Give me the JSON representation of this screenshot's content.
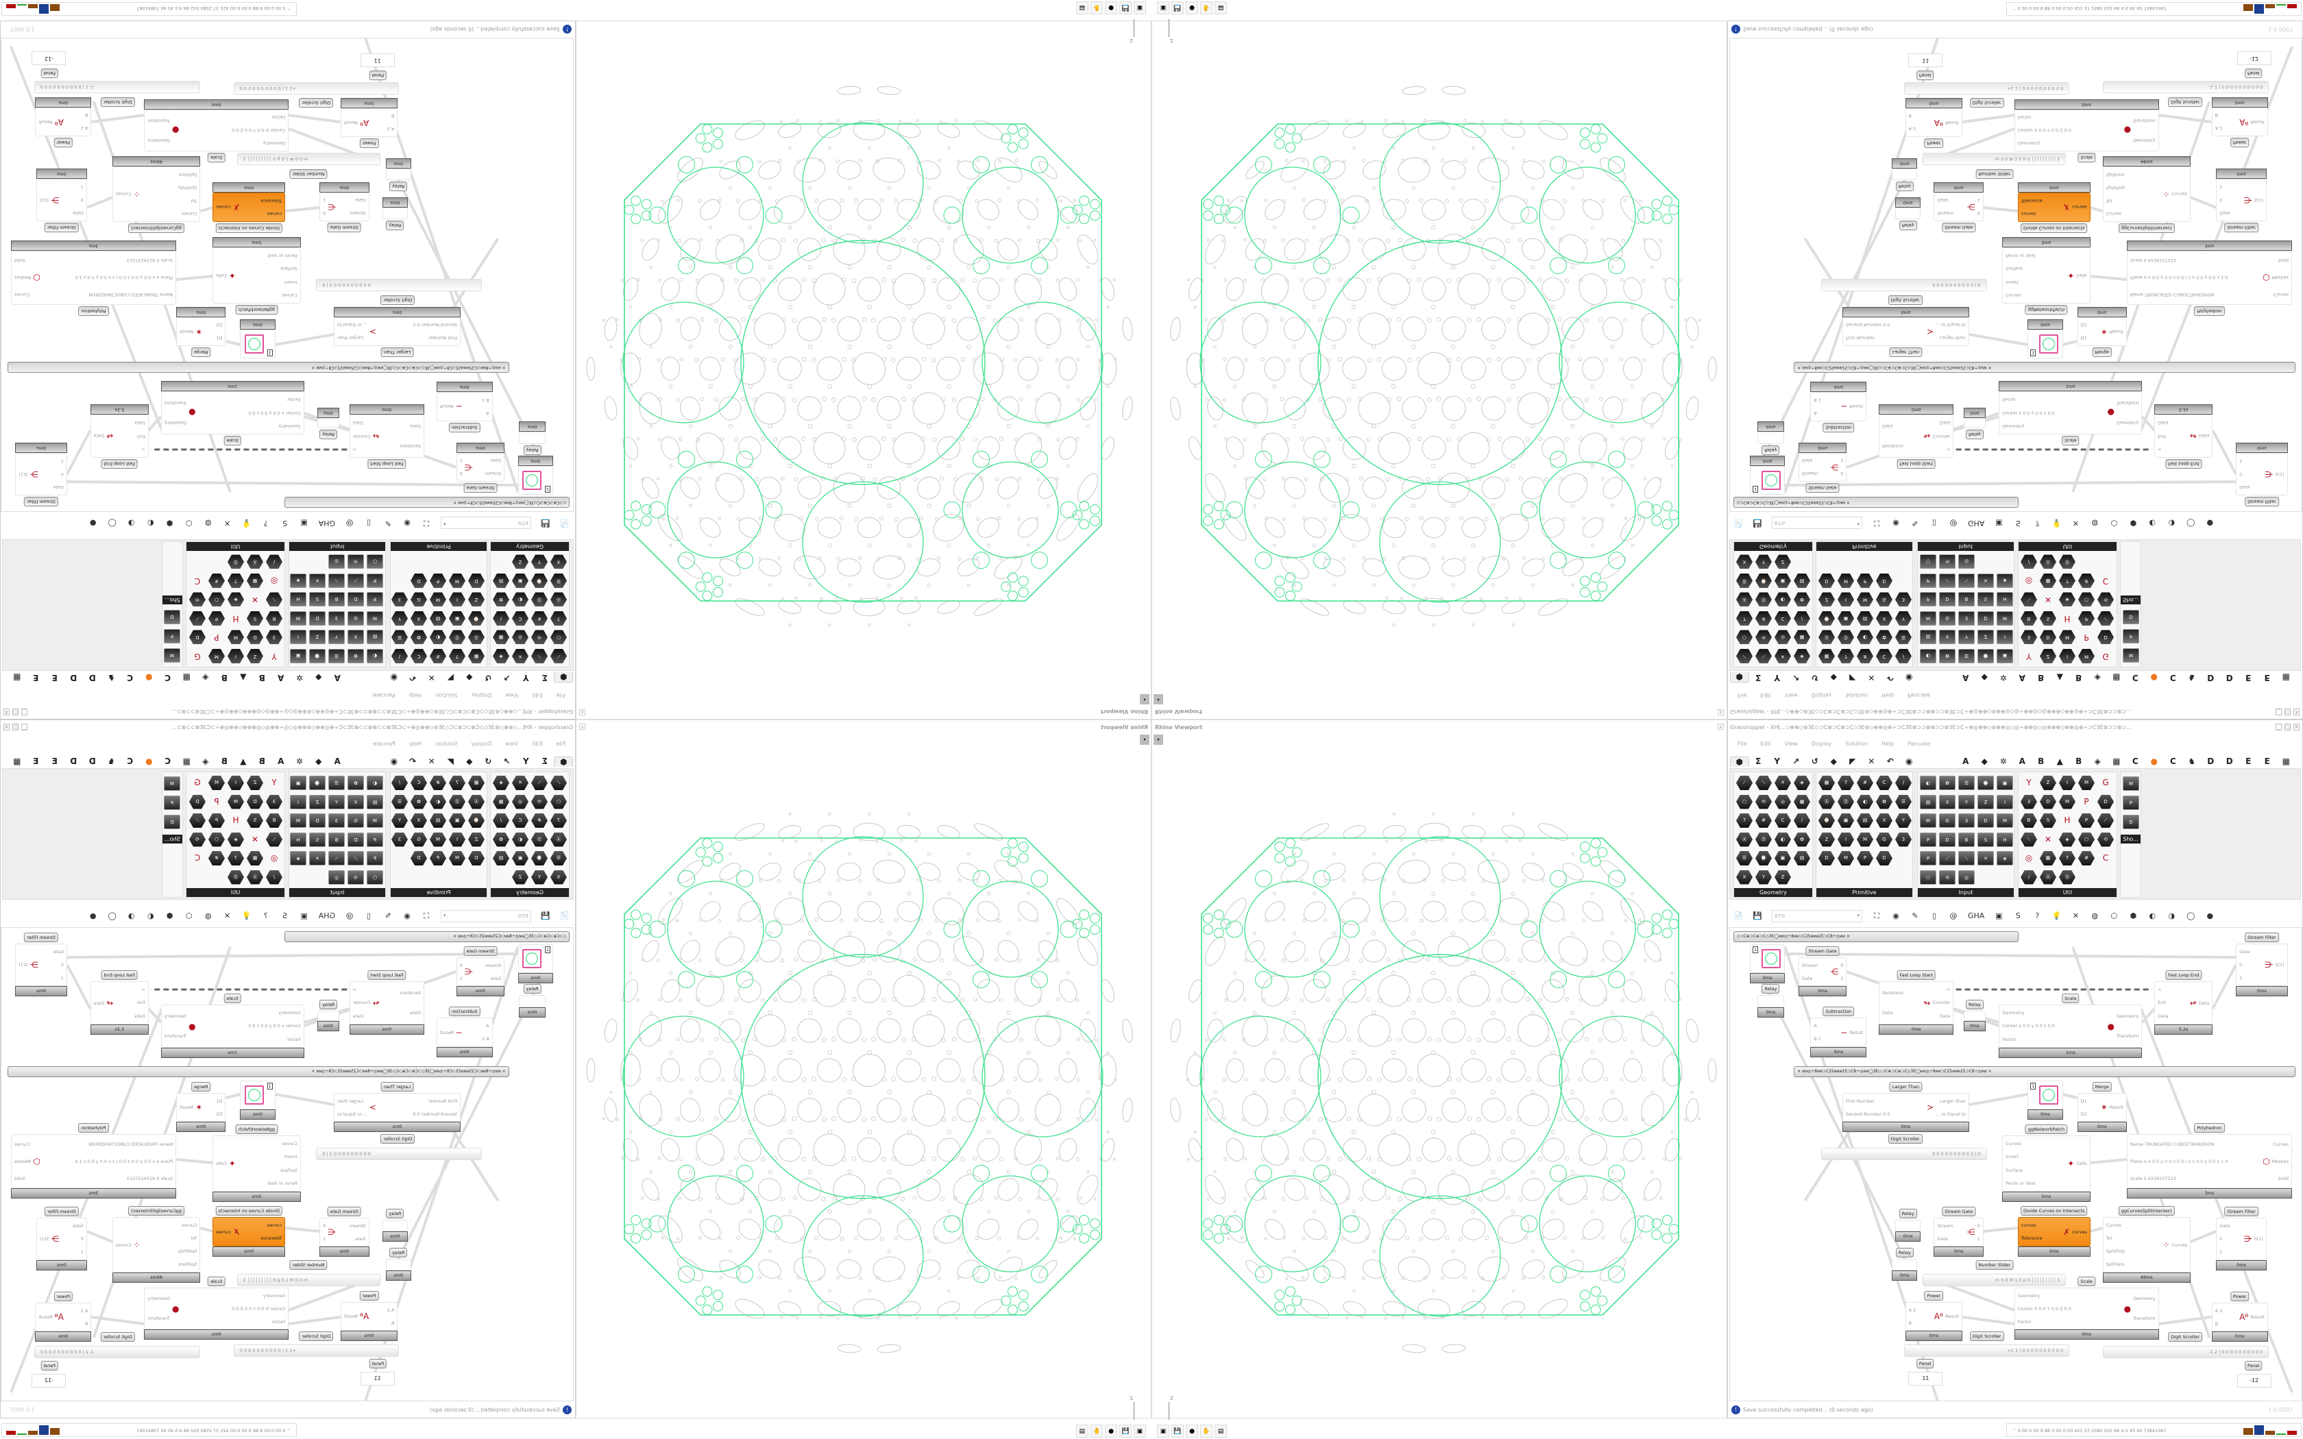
{
  "viewport": {
    "title": "Rhino Viewport",
    "close": "x",
    "menu_icon": "▾",
    "axis_z": "Z",
    "axis_x": "X",
    "colors": {
      "curve_green": "#3ee08e",
      "curve_gray": "#c8c8c8"
    }
  },
  "taskbar": {
    "icons": [
      "terminal-icon",
      "floppy-64-icon",
      "firefox-icon",
      "inkscape-icon",
      "calculator-icon"
    ],
    "glyphs": [
      "▣",
      "💾",
      "●",
      "✋",
      "▤"
    ]
  },
  "grasshopper": {
    "title": "Grasshopper - XH[...◇⊕⊕◇⊛3E◇⊃C⊗⊃C⊗⊃C◇3E⊛◇⊕⊕◎⊕÷⊃C3E⊗⊃⊃⊗⊗⊃⊃⊗3E⊃C÷⊕◎⊕⊕◇⊛⊕⊕◎◇◎÷⊕⊕◎◇◎⊕⊕⊕◇⊕⊕◎⊕÷⊃C3E⊗⊃⊃⊗⊃...",
    "window_buttons": [
      "_",
      "□",
      "X"
    ],
    "menu": [
      "File",
      "Edit",
      "View",
      "Display",
      "Solution",
      "Help",
      "Pancake"
    ],
    "tabs": [
      "⬢",
      "Σ",
      "Y",
      "↗",
      "↺",
      "◆",
      "◤",
      "✕",
      "↶",
      "◉",
      "",
      "",
      "A",
      "◆",
      "✲",
      "A",
      "B",
      "▲",
      "B",
      "◈",
      "▦",
      "C",
      "●",
      "C",
      "♞",
      "D",
      "D",
      "E",
      "E",
      "▦"
    ],
    "ribbon": [
      {
        "label": "Geometry",
        "count": 23,
        "shape": "hex"
      },
      {
        "label": "Primitive",
        "count": 24,
        "shape": "hex"
      },
      {
        "label": "Input",
        "count": 28,
        "shape": "sq"
      },
      {
        "label": "Util",
        "count": 28,
        "shape": "mix"
      },
      {
        "label": "Sho...",
        "count": 3,
        "shape": "sq"
      }
    ],
    "toolbar": {
      "zoom": "87%",
      "icons": [
        "📄",
        "💾",
        "⛶",
        "◉",
        "✎",
        "▯",
        "@",
        "GHA",
        "▣",
        "S",
        "?",
        "💡",
        "✕",
        "◍",
        "⬡",
        "⬢",
        "◐",
        "◑",
        "◯",
        "●"
      ]
    },
    "canvas": {
      "groups": [
        "◇⊃C⊕⊃C⊕⊃C◇3E◯ᴎᴎ◎÷8ᴎᴎ⊃C25ᴎᴎᴎ25⊃C8÷◎ᴎᴎ  ×",
        "×   ᴎᴎ◎÷8ᴎᴎ⊃C25ᴎᴎᴎ25⊃C8÷◎ᴎᴎ◯3E◇⊃C⊕⊃C⊕⊃C◇3E◯ᴎᴎ◎÷8ᴎᴎ⊃C25ᴎᴎᴎ25⊃C8÷◎ᴎᴎ   ×"
      ],
      "components": [
        {
          "title": "",
          "kind": "param",
          "value": "1",
          "time": "0ms"
        },
        {
          "title": "Relay",
          "kind": "relay",
          "time": "0ms"
        },
        {
          "title": "Stream Gate",
          "inputs": [
            "Stream",
            "Gate"
          ],
          "outputs": [
            "0",
            "1"
          ],
          "icon": "⋲",
          "time": "0ms"
        },
        {
          "title": "Subtraction",
          "inputs": [
            "A",
            "B 1"
          ],
          "outputs": [
            "Result"
          ],
          "icon": "−",
          "time": "0ms"
        },
        {
          "title": "Fast Loop Start",
          "inputs": [
            "Iterations",
            "Data"
          ],
          "outputs": [
            ">",
            "Counter",
            "Data"
          ],
          "icon": "↬",
          "time": "0ms"
        },
        {
          "title": "Relay",
          "kind": "relay",
          "time": "0ms"
        },
        {
          "title": "Scale",
          "inputs": [
            "Geometry",
            "Center x 0.0 y 0.0 z 0.0",
            "Factor"
          ],
          "outputs": [
            "Geometry",
            "Transform"
          ],
          "icon": "●",
          "time": "1ms"
        },
        {
          "title": "Fast Loop End",
          "inputs": [
            "<",
            "Exit",
            "Data"
          ],
          "outputs": [
            "Data"
          ],
          "icon": "↫",
          "time": "5.2s"
        },
        {
          "title": "Stream Filter",
          "inputs": [
            "Gate",
            "0",
            "1"
          ],
          "outputs": [
            "S(1)"
          ],
          "icon": "⋺",
          "time": "0ms"
        },
        {
          "title": "Larger Than",
          "inputs": [
            "First Number",
            "Second Number 0.0"
          ],
          "outputs": [
            "Larger than",
            "... or Equal to"
          ],
          "icon": ">",
          "time": "0ms"
        },
        {
          "title": "",
          "kind": "param",
          "value": "1",
          "time": "0ms"
        },
        {
          "title": "Merge",
          "inputs": [
            "D1",
            "D2"
          ],
          "outputs": [
            "Result"
          ],
          "icon": "✶",
          "time": "0ms"
        },
        {
          "title": "ggNetworkPatch",
          "inputs": [
            "Curves",
            "Invert",
            "Surface",
            "Perim or Void"
          ],
          "outputs": [
            "Cells"
          ],
          "icon": "✦",
          "time": "5ms"
        },
        {
          "title": "Polyhedron",
          "inputs": [
            "Name TRUNCATED CUBOCTAHEDRON",
            "Plane  o x 0.0 y 0.0 z 0.0 / z x 0.0 y 0.0 z 1.0",
            "Scale 0.4234237223"
          ],
          "outputs": [
            "Curves",
            "Meshes",
            "Solid"
          ],
          "icon": "⬡",
          "time": "3ms"
        },
        {
          "title": "Relay",
          "kind": "relay",
          "time": "0ms"
        },
        {
          "title": "Relay",
          "kind": "relay",
          "time": "0ms"
        },
        {
          "title": "Stream Gate",
          "inputs": [
            "Stream",
            "Gate"
          ],
          "outputs": [
            "0",
            "1"
          ],
          "icon": "⋲",
          "time": "0ms"
        },
        {
          "title": "Divide Curves on Intersects",
          "inputs": [
            "curves",
            "Tolerance"
          ],
          "outputs": [
            "curves"
          ],
          "icon": "✗",
          "time": "0ms",
          "selected": true
        },
        {
          "title": "ggCurvesSplitIntersect",
          "inputs": [
            "Curves",
            "Tol",
            "SplitPoly",
            "Splitters"
          ],
          "outputs": [
            "Curves"
          ],
          "icon": "⁘",
          "time": "46ms"
        },
        {
          "title": "Stream Filter",
          "inputs": [
            "Gate",
            "0",
            "1"
          ],
          "outputs": [
            "S(1)"
          ],
          "icon": "⋺",
          "time": "0ms"
        },
        {
          "title": "Scale",
          "inputs": [
            "Geometry",
            "Center X 0.0 Y 0.0 Z 0.0",
            "Factor"
          ],
          "outputs": [
            "Geometry",
            "Transform"
          ],
          "icon": "●",
          "time": "0ms"
        },
        {
          "title": "Power",
          "inputs": [
            "A 2",
            "B"
          ],
          "outputs": [
            "Result"
          ],
          "icon": "Aᴮ",
          "time": "0ms"
        },
        {
          "title": "Power",
          "inputs": [
            "A 2",
            "B"
          ],
          "outputs": [
            "Result"
          ],
          "icon": "Aᴮ",
          "time": "0ms"
        }
      ],
      "sliders": [
        {
          "title": "Digit Scroller",
          "value": "0 0 0 0 0 0 0 0 0 3 | 0"
        },
        {
          "title": "Number Slider",
          "value": "m 0.0  M 1.0  p 0   ┆┆┆┆┆┆┆┆┆ 1"
        },
        {
          "title": "Digit Scroller",
          "value": "+1 1 | 0 0 0 0 0 0 0 0 0 0"
        },
        {
          "title": "Digit Scroller",
          "value": "-1 2 | 0 0 0 0 0 0 0 0 0 0"
        }
      ],
      "panels": [
        {
          "title": "Panel",
          "value": "11",
          "time": "0ms"
        },
        {
          "title": "Panel",
          "value": "-12",
          "time": "0ms"
        }
      ]
    },
    "status": {
      "message": "Save successfully completed... (0 seconds ago)",
      "version": "1.0.0007",
      "icon": "!"
    }
  },
  "systray": {
    "text": "⌃  0.00 0.00  9   88  0.00 0.00  421  37  2580 502  66  4.5  45  40  73841067",
    "bar_colors": [
      "#8a4a10",
      "#1c3f8f",
      "#8a4a10",
      "#2aa030",
      "#b01010"
    ]
  }
}
